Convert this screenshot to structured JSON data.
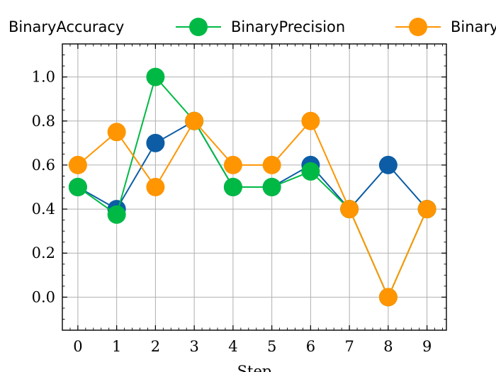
{
  "chart_data": {
    "type": "line",
    "title": "",
    "xlabel": "Step",
    "ylabel": "",
    "x": [
      0,
      1,
      2,
      3,
      4,
      5,
      6,
      7,
      8,
      9
    ],
    "xlim": [
      -0.4,
      9.5
    ],
    "ylim": [
      -0.15,
      1.15
    ],
    "xticks": [
      0,
      1,
      2,
      3,
      4,
      5,
      6,
      7,
      8,
      9
    ],
    "yticks": [
      0.0,
      0.2,
      0.4,
      0.6,
      0.8,
      1.0
    ],
    "grid": true,
    "legend": "top, outside plot area, single row",
    "series": [
      {
        "name": "BinaryAccuracy",
        "color": "#0C5DA5",
        "values": [
          0.5,
          0.4,
          0.7,
          0.8,
          0.5,
          0.5,
          0.6,
          0.4,
          0.6,
          0.4
        ]
      },
      {
        "name": "BinaryPrecision",
        "color": "#00B945",
        "values": [
          0.5,
          0.375,
          1.0,
          0.8,
          0.5,
          0.5,
          0.571,
          0.4,
          0.0,
          0.4
        ]
      },
      {
        "name": "Binary",
        "color": "#FF9500",
        "values": [
          0.6,
          0.75,
          0.5,
          0.8,
          0.6,
          0.6,
          0.8,
          0.4,
          0.0,
          0.4
        ]
      }
    ]
  }
}
